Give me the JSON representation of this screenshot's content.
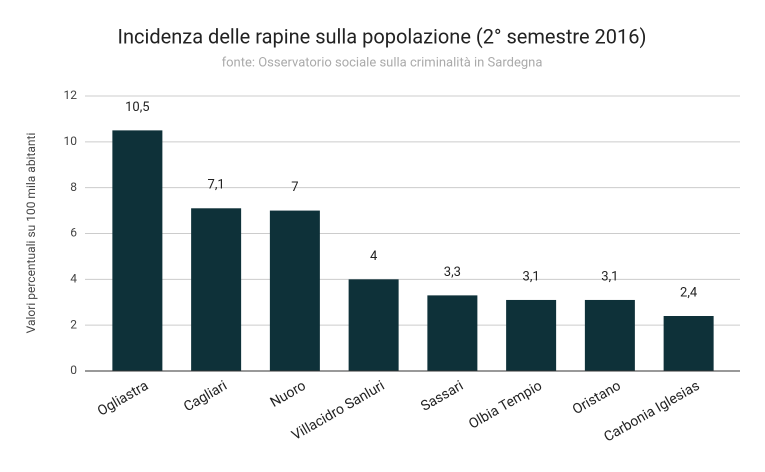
{
  "chart_data": {
    "type": "bar",
    "title": "Incidenza delle rapine sulla popolazione (2° semestre 2016)",
    "subtitle": "fonte: Osservatorio sociale sulla criminalità in Sardegna",
    "y_label": "Valori percentuali su 100 mila abitanti",
    "categories": [
      "Ogliastra",
      "Cagliari",
      "Nuoro",
      "Villacidro Sanluri",
      "Sassari",
      "Olbia Tempio",
      "Oristano",
      "Carbonia Iglesias"
    ],
    "values": [
      10.5,
      7.1,
      7,
      4,
      3.3,
      3.1,
      3.1,
      2.4
    ],
    "value_labels": [
      "10,5",
      "7,1",
      "7",
      "4",
      "3,3",
      "3,1",
      "3,1",
      "2,4"
    ],
    "color": "#0e3139",
    "ylim": [
      0,
      12
    ],
    "yticks": [
      0,
      2,
      4,
      6,
      8,
      10,
      12
    ],
    "grid": true
  }
}
